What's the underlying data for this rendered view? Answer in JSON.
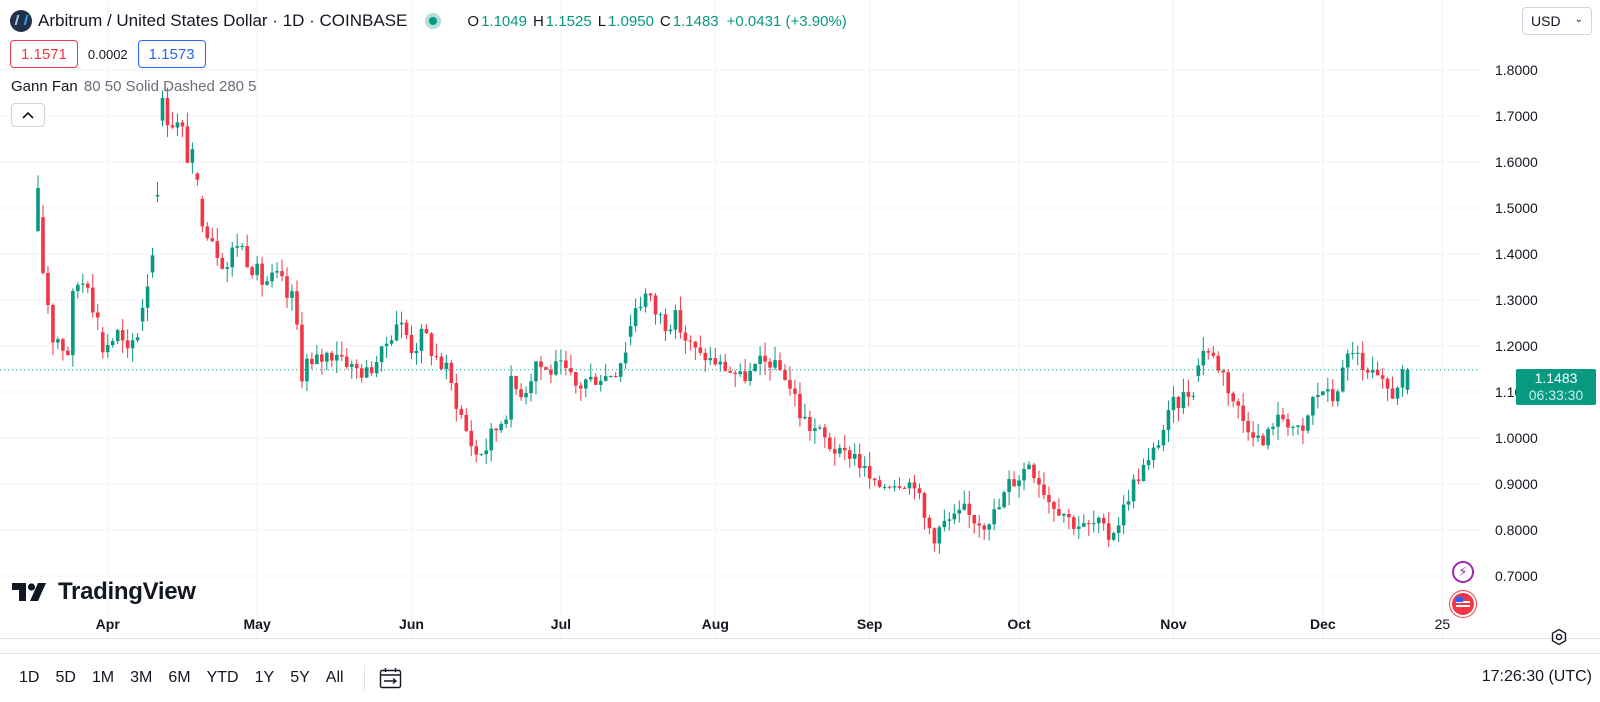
{
  "legend": {
    "title": "Arbitrum / United States Dollar · 1D · COINBASE",
    "open_label": "O",
    "open": "1.1049",
    "high_label": "H",
    "high": "1.1525",
    "low_label": "L",
    "low": "1.0950",
    "close_label": "C",
    "close": "1.1483",
    "change": "+0.0431 (+3.90%)"
  },
  "trade": {
    "sell": "1.1571",
    "spread": "0.0002",
    "buy": "1.1573"
  },
  "indicator": {
    "name": "Gann Fan",
    "params": "80 50 Solid Dashed 280 5"
  },
  "currency": "USD",
  "watermark": "TradingView",
  "last_price": {
    "price": "1.1483",
    "countdown": "06:33:30"
  },
  "ranges": [
    "1D",
    "5D",
    "1M",
    "3M",
    "6M",
    "YTD",
    "1Y",
    "5Y",
    "All"
  ],
  "clock": "17:26:30 (UTC)",
  "colors": {
    "up": "#089981",
    "down": "#f23645",
    "grid": "#f0f3fa",
    "text": "#131722"
  },
  "icons": {
    "collapse": "chevron-up-icon",
    "date_range": "calendar-arrow-icon",
    "settings": "gear-icon",
    "event_flash": "lightning-icon",
    "event_flag": "us-flag-icon"
  },
  "chart_data": {
    "type": "candlestick",
    "title": "Arbitrum / United States Dollar · 1D · COINBASE",
    "xlabel": "",
    "ylabel": "",
    "ylim": [
      0.62,
      1.86
    ],
    "yticks": [
      "1.8000",
      "1.7000",
      "1.6000",
      "1.5000",
      "1.4000",
      "1.3000",
      "1.2000",
      "1.1000",
      "1.0000",
      "0.9000",
      "0.8000",
      "0.7000"
    ],
    "xticks": [
      {
        "label": "Apr",
        "index": 14
      },
      {
        "label": "May",
        "index": 44
      },
      {
        "label": "Jun",
        "index": 75
      },
      {
        "label": "Jul",
        "index": 105
      },
      {
        "label": "Aug",
        "index": 136
      },
      {
        "label": "Sep",
        "index": 167
      },
      {
        "label": "Oct",
        "index": 197
      },
      {
        "label": "Nov",
        "index": 228
      },
      {
        "label": "Dec",
        "index": 258
      },
      {
        "label": "25",
        "index": 282
      }
    ],
    "last_price": 1.1483,
    "grid": true,
    "anchors": [
      [
        0,
        1.33,
        1.57
      ],
      [
        3,
        1.18,
        1.3
      ],
      [
        6,
        1.15,
        1.25
      ],
      [
        8,
        1.27,
        1.42
      ],
      [
        10,
        1.32,
        1.4
      ],
      [
        13,
        1.17,
        1.23
      ],
      [
        16,
        1.2,
        1.25
      ],
      [
        18,
        1.16,
        1.2
      ],
      [
        20,
        1.2,
        1.27
      ],
      [
        23,
        1.36,
        1.48
      ],
      [
        25,
        1.69,
        1.75
      ],
      [
        27,
        1.66,
        1.73
      ],
      [
        29,
        1.62,
        1.69
      ],
      [
        31,
        1.56,
        1.63
      ],
      [
        33,
        1.46,
        1.52
      ],
      [
        36,
        1.38,
        1.48
      ],
      [
        38,
        1.35,
        1.4
      ],
      [
        40,
        1.4,
        1.46
      ],
      [
        42,
        1.37,
        1.42
      ],
      [
        45,
        1.32,
        1.36
      ],
      [
        48,
        1.32,
        1.37
      ],
      [
        51,
        1.25,
        1.33
      ],
      [
        53,
        1.12,
        1.25
      ],
      [
        55,
        1.08,
        1.19
      ],
      [
        57,
        1.15,
        1.2
      ],
      [
        60,
        1.17,
        1.21
      ],
      [
        63,
        1.14,
        1.17
      ],
      [
        66,
        1.12,
        1.16
      ],
      [
        69,
        1.17,
        1.2
      ],
      [
        72,
        1.23,
        1.28
      ],
      [
        75,
        1.17,
        1.25
      ],
      [
        78,
        1.19,
        1.24
      ],
      [
        80,
        1.15,
        1.2
      ],
      [
        82,
        1.12,
        1.17
      ],
      [
        84,
        1.06,
        1.1
      ],
      [
        86,
        0.99,
        1.04
      ],
      [
        88,
        0.94,
        0.99
      ],
      [
        90,
        0.96,
        1.0
      ],
      [
        93,
        1.01,
        1.08
      ],
      [
        95,
        1.07,
        1.14
      ],
      [
        98,
        1.09,
        1.13
      ],
      [
        100,
        1.14,
        1.2
      ],
      [
        102,
        1.12,
        1.17
      ],
      [
        105,
        1.14,
        1.17
      ],
      [
        108,
        1.08,
        1.14
      ],
      [
        110,
        1.1,
        1.15
      ],
      [
        113,
        1.12,
        1.14
      ],
      [
        116,
        1.13,
        1.16
      ],
      [
        118,
        1.17,
        1.23
      ],
      [
        120,
        1.27,
        1.31
      ],
      [
        122,
        1.28,
        1.34
      ],
      [
        124,
        1.25,
        1.3
      ],
      [
        126,
        1.23,
        1.27
      ],
      [
        128,
        1.24,
        1.28
      ],
      [
        130,
        1.2,
        1.23
      ],
      [
        133,
        1.17,
        1.19
      ],
      [
        136,
        1.15,
        1.18
      ],
      [
        139,
        1.13,
        1.16
      ],
      [
        142,
        1.12,
        1.14
      ],
      [
        145,
        1.15,
        1.18
      ],
      [
        148,
        1.15,
        1.17
      ],
      [
        150,
        1.12,
        1.15
      ],
      [
        152,
        1.05,
        1.12
      ],
      [
        154,
        1.0,
        1.07
      ],
      [
        156,
        1.0,
        1.04
      ],
      [
        158,
        0.97,
        1.02
      ],
      [
        161,
        0.95,
        0.98
      ],
      [
        164,
        0.95,
        0.98
      ],
      [
        166,
        0.9,
        0.95
      ],
      [
        168,
        0.88,
        0.91
      ],
      [
        171,
        0.89,
        0.91
      ],
      [
        174,
        0.89,
        0.92
      ],
      [
        176,
        0.89,
        0.91
      ],
      [
        178,
        0.78,
        0.86
      ],
      [
        180,
        0.77,
        0.81
      ],
      [
        182,
        0.8,
        0.83
      ],
      [
        184,
        0.81,
        0.84
      ],
      [
        186,
        0.82,
        0.86
      ],
      [
        188,
        0.81,
        0.83
      ],
      [
        190,
        0.8,
        0.82
      ],
      [
        193,
        0.83,
        0.87
      ],
      [
        195,
        0.88,
        0.92
      ],
      [
        197,
        0.9,
        0.93
      ],
      [
        199,
        0.93,
        0.97
      ],
      [
        201,
        0.89,
        0.93
      ],
      [
        203,
        0.85,
        0.88
      ],
      [
        206,
        0.82,
        0.86
      ],
      [
        208,
        0.8,
        0.82
      ],
      [
        211,
        0.8,
        0.82
      ],
      [
        213,
        0.8,
        0.83
      ],
      [
        215,
        0.77,
        0.8
      ],
      [
        217,
        0.8,
        0.84
      ],
      [
        219,
        0.86,
        0.89
      ],
      [
        221,
        0.9,
        0.95
      ],
      [
        223,
        0.93,
        0.96
      ],
      [
        226,
        1.0,
        1.04
      ],
      [
        228,
        1.05,
        1.09
      ],
      [
        230,
        1.07,
        1.11
      ],
      [
        232,
        1.09,
        1.13
      ],
      [
        234,
        1.18,
        1.22
      ],
      [
        236,
        1.16,
        1.19
      ],
      [
        238,
        1.12,
        1.16
      ],
      [
        240,
        1.06,
        1.11
      ],
      [
        242,
        1.02,
        1.06
      ],
      [
        244,
        1.0,
        1.03
      ],
      [
        246,
        0.97,
        1.0
      ],
      [
        248,
        1.02,
        1.05
      ],
      [
        250,
        1.03,
        1.06
      ],
      [
        252,
        1.01,
        1.04
      ],
      [
        254,
        1.0,
        1.02
      ],
      [
        256,
        1.07,
        1.1
      ],
      [
        258,
        1.09,
        1.12
      ],
      [
        260,
        1.07,
        1.1
      ],
      [
        262,
        1.12,
        1.16
      ],
      [
        264,
        1.17,
        1.24
      ],
      [
        266,
        1.1,
        1.16
      ],
      [
        268,
        1.12,
        1.15
      ],
      [
        270,
        1.1,
        1.13
      ],
      [
        272,
        1.08,
        1.11
      ],
      [
        274,
        1.13,
        1.15
      ]
    ],
    "last_candle": {
      "open": 1.1049,
      "high": 1.1525,
      "low": 1.095,
      "close": 1.1483
    }
  }
}
